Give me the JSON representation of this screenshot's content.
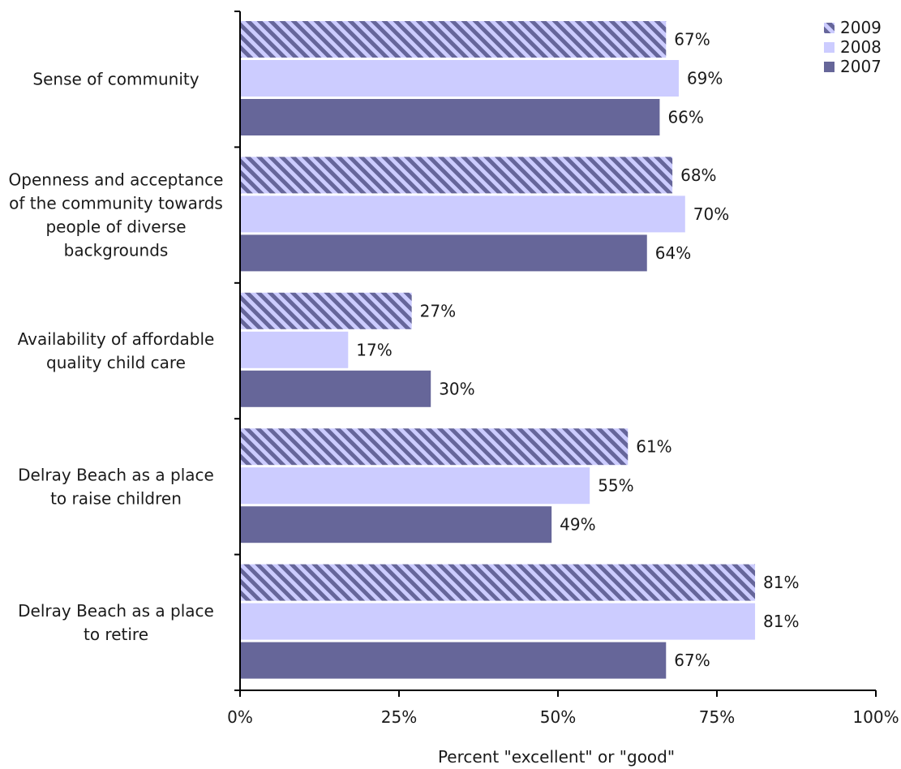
{
  "chart_data": {
    "type": "bar",
    "orientation": "horizontal",
    "categories": [
      "Sense of community",
      "Openness and acceptance of the community towards people of diverse backgrounds",
      "Availability of affordable quality child care",
      "Delray Beach as a place to raise children",
      "Delray Beach as a place to retire"
    ],
    "category_lines": [
      [
        "Sense of community"
      ],
      [
        "Openness and acceptance",
        "of the community towards",
        "people of diverse",
        "backgrounds"
      ],
      [
        "Availability of affordable",
        "quality child care"
      ],
      [
        "Delray Beach as a place",
        "to raise children"
      ],
      [
        "Delray Beach as a place",
        "to retire"
      ]
    ],
    "series": [
      {
        "name": "2009",
        "values": [
          67,
          68,
          27,
          61,
          81
        ],
        "color": "#66669a",
        "pattern": "diagonal-hatch"
      },
      {
        "name": "2008",
        "values": [
          69,
          70,
          17,
          55,
          81
        ],
        "color": "#ccccff",
        "pattern": "solid"
      },
      {
        "name": "2007",
        "values": [
          66,
          64,
          30,
          49,
          67
        ],
        "color": "#666699",
        "pattern": "solid"
      }
    ],
    "value_suffix": "%",
    "xlabel": "Percent \"excellent\" or \"good\"",
    "ylabel": "",
    "title": "",
    "xlim": [
      0,
      100
    ],
    "xticks": [
      0,
      25,
      50,
      75,
      100
    ],
    "xtick_labels": [
      "0%",
      "25%",
      "50%",
      "75%",
      "100%"
    ],
    "legend_position": "top-right",
    "grid": false
  }
}
